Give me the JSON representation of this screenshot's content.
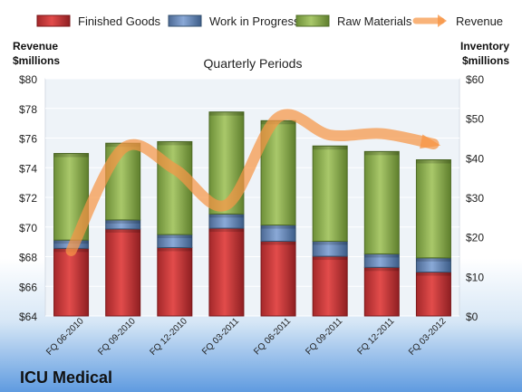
{
  "chart_data": {
    "type": "bar",
    "title": "Quarterly Periods",
    "company_label": "ICU Medical",
    "left_axis_label": [
      "Revenue",
      "$millions"
    ],
    "right_axis_label": [
      "Inventory",
      "$millions"
    ],
    "legend_position": "top",
    "left_axis": {
      "range": [
        64,
        80
      ],
      "ticks": [
        "$64",
        "$66",
        "$68",
        "$70",
        "$72",
        "$74",
        "$76",
        "$78",
        "$80"
      ]
    },
    "right_axis": {
      "range": [
        0,
        60
      ],
      "ticks": [
        "$0",
        "$10",
        "$20",
        "$30",
        "$40",
        "$50",
        "$60"
      ]
    },
    "categories": [
      "FQ 06-2010",
      "FQ 09-2010",
      "FQ 12-2010",
      "FQ 03-2011",
      "FQ 06-2011",
      "FQ 09-2011",
      "FQ 12-2011",
      "FQ 03-2012"
    ],
    "series": [
      {
        "name": "Finished Goods",
        "axis": "right",
        "color": "#c0504d",
        "values": [
          17.1,
          22.0,
          17.3,
          22.2,
          18.9,
          15.1,
          12.3,
          11.1
        ]
      },
      {
        "name": "Work in Progress",
        "axis": "right",
        "color": "#4f81bd",
        "values": [
          2.1,
          2.3,
          3.3,
          3.6,
          4.1,
          3.8,
          3.4,
          3.6
        ]
      },
      {
        "name": "Raw Materials",
        "axis": "right",
        "color": "#9bbb59",
        "values": [
          21.9,
          19.4,
          23.5,
          25.8,
          26.4,
          24.1,
          25.9,
          24.8
        ]
      },
      {
        "name": "Revenue",
        "axis": "left",
        "type": "line",
        "color": "#f79646",
        "values": [
          68.4,
          75.3,
          73.9,
          71.5,
          77.4,
          76.2,
          76.3,
          75.6
        ]
      }
    ]
  }
}
